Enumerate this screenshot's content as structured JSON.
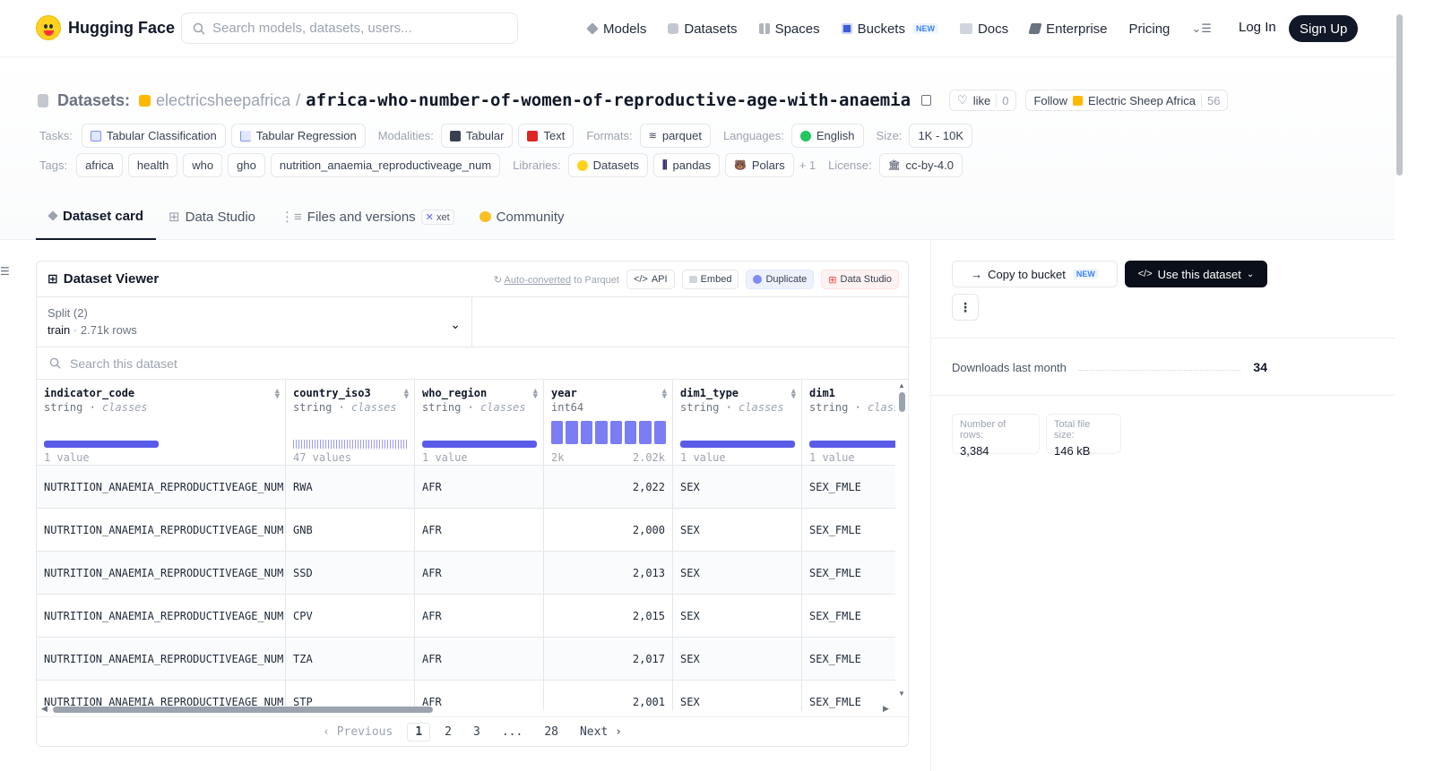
{
  "nav": {
    "brand": "Hugging Face",
    "search_placeholder": "Search models, datasets, users...",
    "links": [
      {
        "label": "Models",
        "icon": "cube-icon",
        "color": "#6b7280"
      },
      {
        "label": "Datasets",
        "icon": "database-icon",
        "color": "#9ca3af"
      },
      {
        "label": "Spaces",
        "icon": "grid-icon",
        "color": "#9ca3af"
      },
      {
        "label": "Buckets",
        "icon": "bucket-icon",
        "color": "#3b5bdb"
      },
      {
        "label": "Docs",
        "icon": "book-icon",
        "color": "#9ca3af"
      },
      {
        "label": "Enterprise",
        "icon": "enterprise-icon",
        "color": "#6b7280"
      }
    ],
    "buckets_badge": "NEW",
    "pricing": "Pricing",
    "login": "Log In",
    "signup": "Sign Up"
  },
  "header": {
    "section": "Datasets:",
    "owner": "electricsheepafrica",
    "separator": "/",
    "name": "africa-who-number-of-women-of-reproductive-age-with-anaemia",
    "like_label": "like",
    "like_count": "0",
    "follow_label": "Follow",
    "follow_org": "Electric Sheep Africa",
    "follow_count": "56",
    "tasks_label": "Tasks:",
    "tasks": [
      "Tabular Classification",
      "Tabular Regression"
    ],
    "modalities_label": "Modalities:",
    "modalities": [
      "Tabular",
      "Text"
    ],
    "formats_label": "Formats:",
    "formats": [
      "parquet"
    ],
    "languages_label": "Languages:",
    "languages": [
      "English"
    ],
    "size_label": "Size:",
    "size": "1K - 10K",
    "tags_label": "Tags:",
    "tags": [
      "africa",
      "health",
      "who",
      "gho",
      "nutrition_anaemia_reproductiveage_num"
    ],
    "libraries_label": "Libraries:",
    "libraries": [
      "Datasets",
      "pandas",
      "Polars"
    ],
    "libraries_more": "+ 1",
    "license_label": "License:",
    "license": "cc-by-4.0"
  },
  "tabs": {
    "dataset_card": "Dataset card",
    "data_studio": "Data Studio",
    "files": "Files and versions",
    "xet": "xet",
    "community": "Community"
  },
  "viewer": {
    "title": "Dataset Viewer",
    "auto_converted": "Auto-converted",
    "auto_suffix": "to Parquet",
    "api": "API",
    "embed": "Embed",
    "duplicate": "Duplicate",
    "data_studio": "Data Studio",
    "split_label": "Split (2)",
    "split_name": "train",
    "split_rows": "2.71k rows",
    "search_placeholder": "Search this dataset",
    "columns": [
      {
        "name": "indicator_code",
        "type": "string",
        "kind": "classes",
        "summary": "1 value"
      },
      {
        "name": "country_iso3",
        "type": "string",
        "kind": "classes",
        "summary": "47 values"
      },
      {
        "name": "who_region",
        "type": "string",
        "kind": "classes",
        "summary": "1 value"
      },
      {
        "name": "year",
        "type": "int64",
        "kind": "",
        "summary_min": "2k",
        "summary_max": "2.02k"
      },
      {
        "name": "dim1_type",
        "type": "string",
        "kind": "classes",
        "summary": "1 value"
      },
      {
        "name": "dim1",
        "type": "string",
        "kind": "classes",
        "summary": "1 value"
      }
    ],
    "rows": [
      [
        "NUTRITION_ANAEMIA_REPRODUCTIVEAGE_NUM",
        "RWA",
        "AFR",
        "2,022",
        "SEX",
        "SEX_FMLE"
      ],
      [
        "NUTRITION_ANAEMIA_REPRODUCTIVEAGE_NUM",
        "GNB",
        "AFR",
        "2,000",
        "SEX",
        "SEX_FMLE"
      ],
      [
        "NUTRITION_ANAEMIA_REPRODUCTIVEAGE_NUM",
        "SSD",
        "AFR",
        "2,013",
        "SEX",
        "SEX_FMLE"
      ],
      [
        "NUTRITION_ANAEMIA_REPRODUCTIVEAGE_NUM",
        "CPV",
        "AFR",
        "2,015",
        "SEX",
        "SEX_FMLE"
      ],
      [
        "NUTRITION_ANAEMIA_REPRODUCTIVEAGE_NUM",
        "TZA",
        "AFR",
        "2,017",
        "SEX",
        "SEX_FMLE"
      ],
      [
        "NUTRITION_ANAEMIA_REPRODUCTIVEAGE_NUM",
        "STP",
        "AFR",
        "2,001",
        "SEX",
        "SEX_FMLE"
      ]
    ],
    "pager": {
      "previous": "Previous",
      "pages": [
        "1",
        "2",
        "3",
        "...",
        "28"
      ],
      "current": "1",
      "next": "Next"
    }
  },
  "sidebar": {
    "copy_to_bucket": "Copy to bucket",
    "copy_badge": "NEW",
    "use_dataset": "Use this dataset",
    "downloads_label": "Downloads last month",
    "downloads_value": "34",
    "rows_label": "Number of rows:",
    "rows_value": "3,384",
    "filesize_label": "Total file size:",
    "filesize_value": "146 kB"
  },
  "colors": {
    "accent": "#5a5be8",
    "dark": "#111827",
    "brand_yellow": "#ffd21e"
  }
}
